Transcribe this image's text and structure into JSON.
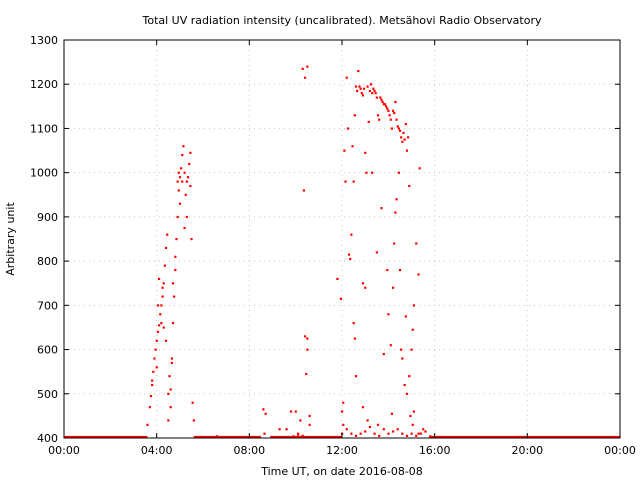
{
  "chart_data": {
    "type": "scatter",
    "title": "Total UV radiation intensity (uncalibrated). Metsähovi Radio Observatory",
    "xlabel": "Time UT, on date 2016-08-08",
    "ylabel": "Arbitrary unit",
    "xlim": [
      0,
      24
    ],
    "ylim": [
      400,
      1300
    ],
    "x_ticks": [
      {
        "value": 0,
        "label": "00:00"
      },
      {
        "value": 4,
        "label": "04:00"
      },
      {
        "value": 8,
        "label": "08:00"
      },
      {
        "value": 12,
        "label": "12:00"
      },
      {
        "value": 16,
        "label": "16:00"
      },
      {
        "value": 20,
        "label": "20:00"
      },
      {
        "value": 24,
        "label": "00:00"
      }
    ],
    "y_ticks": [
      {
        "value": 400,
        "label": "400"
      },
      {
        "value": 500,
        "label": "500"
      },
      {
        "value": 600,
        "label": "600"
      },
      {
        "value": 700,
        "label": "700"
      },
      {
        "value": 800,
        "label": "800"
      },
      {
        "value": 900,
        "label": "900"
      },
      {
        "value": 1000,
        "label": "1000"
      },
      {
        "value": 1100,
        "label": "1100"
      },
      {
        "value": 1200,
        "label": "1200"
      },
      {
        "value": 1300,
        "label": "1300"
      }
    ],
    "grid": true,
    "series": [
      {
        "color": "#ff0000",
        "points": [
          [
            3.6,
            430
          ],
          [
            3.7,
            470
          ],
          [
            3.75,
            495
          ],
          [
            3.8,
            530
          ],
          [
            3.85,
            550
          ],
          [
            3.9,
            580
          ],
          [
            3.95,
            600
          ],
          [
            4.0,
            620
          ],
          [
            4.05,
            640
          ],
          [
            4.1,
            655
          ],
          [
            4.15,
            680
          ],
          [
            4.2,
            700
          ],
          [
            4.25,
            720
          ],
          [
            4.3,
            750
          ],
          [
            4.35,
            790
          ],
          [
            4.4,
            830
          ],
          [
            4.45,
            860
          ],
          [
            4.5,
            500
          ],
          [
            4.55,
            540
          ],
          [
            4.6,
            470
          ],
          [
            4.65,
            580
          ],
          [
            4.7,
            660
          ],
          [
            4.75,
            720
          ],
          [
            4.8,
            780
          ],
          [
            4.85,
            850
          ],
          [
            4.9,
            900
          ],
          [
            4.95,
            960
          ],
          [
            5.0,
            990
          ],
          [
            5.05,
            1010
          ],
          [
            5.1,
            1040
          ],
          [
            5.15,
            1060
          ],
          [
            5.2,
            1000
          ],
          [
            5.25,
            950
          ],
          [
            5.3,
            980
          ],
          [
            5.35,
            990
          ],
          [
            5.4,
            1020
          ],
          [
            5.45,
            1045
          ],
          [
            5.5,
            850
          ],
          [
            5.55,
            480
          ],
          [
            5.6,
            440
          ],
          [
            3.8,
            520
          ],
          [
            4.1,
            760
          ],
          [
            4.3,
            650
          ],
          [
            4.5,
            440
          ],
          [
            4.7,
            750
          ],
          [
            4.9,
            980
          ],
          [
            5.1,
            980
          ],
          [
            5.3,
            900
          ],
          [
            5.45,
            970
          ],
          [
            4.2,
            660
          ],
          [
            4.0,
            560
          ],
          [
            4.4,
            620
          ],
          [
            4.6,
            510
          ],
          [
            4.8,
            810
          ],
          [
            5.0,
            930
          ],
          [
            5.2,
            875
          ],
          [
            4.05,
            700
          ],
          [
            4.25,
            740
          ],
          [
            4.65,
            570
          ],
          [
            4.95,
            1000
          ],
          [
            6.6,
            404
          ],
          [
            8.6,
            465
          ],
          [
            8.7,
            455
          ],
          [
            8.65,
            410
          ],
          [
            9.3,
            420
          ],
          [
            9.6,
            420
          ],
          [
            9.8,
            460
          ],
          [
            10.0,
            460
          ],
          [
            10.1,
            410
          ],
          [
            10.2,
            440
          ],
          [
            10.3,
            1235
          ],
          [
            10.35,
            960
          ],
          [
            10.4,
            1215
          ],
          [
            10.5,
            1240
          ],
          [
            10.4,
            630
          ],
          [
            10.5,
            625
          ],
          [
            10.45,
            545
          ],
          [
            10.5,
            600
          ],
          [
            10.6,
            430
          ],
          [
            10.6,
            450
          ],
          [
            10.1,
            408
          ],
          [
            9.9,
            404
          ],
          [
            10.3,
            405
          ],
          [
            11.8,
            760
          ],
          [
            11.95,
            715
          ],
          [
            12.0,
            460
          ],
          [
            12.05,
            480
          ],
          [
            12.1,
            1050
          ],
          [
            12.15,
            980
          ],
          [
            12.2,
            1215
          ],
          [
            12.25,
            1100
          ],
          [
            12.3,
            815
          ],
          [
            12.35,
            805
          ],
          [
            12.45,
            1060
          ],
          [
            12.5,
            980
          ],
          [
            12.55,
            1130
          ],
          [
            12.6,
            1195
          ],
          [
            12.65,
            1185
          ],
          [
            12.7,
            1230
          ],
          [
            12.75,
            1195
          ],
          [
            12.8,
            1190
          ],
          [
            12.85,
            1180
          ],
          [
            12.9,
            1175
          ],
          [
            12.95,
            1190
          ],
          [
            13.0,
            1045
          ],
          [
            13.05,
            1000
          ],
          [
            13.1,
            1195
          ],
          [
            13.15,
            1115
          ],
          [
            13.2,
            1185
          ],
          [
            13.25,
            1200
          ],
          [
            13.3,
            1180
          ],
          [
            13.35,
            1190
          ],
          [
            13.4,
            1185
          ],
          [
            13.45,
            1180
          ],
          [
            13.5,
            1170
          ],
          [
            13.55,
            1130
          ],
          [
            13.6,
            1120
          ],
          [
            13.65,
            1170
          ],
          [
            13.7,
            1165
          ],
          [
            13.75,
            1160
          ],
          [
            13.8,
            1155
          ],
          [
            13.85,
            1155
          ],
          [
            13.9,
            1150
          ],
          [
            13.95,
            1145
          ],
          [
            14.0,
            1140
          ],
          [
            14.05,
            1130
          ],
          [
            14.1,
            1120
          ],
          [
            14.15,
            1100
          ],
          [
            14.2,
            1140
          ],
          [
            14.25,
            1135
          ],
          [
            14.3,
            1160
          ],
          [
            14.35,
            1120
          ],
          [
            14.4,
            1105
          ],
          [
            14.45,
            1100
          ],
          [
            14.5,
            1095
          ],
          [
            14.55,
            1080
          ],
          [
            14.6,
            1070
          ],
          [
            14.65,
            1090
          ],
          [
            14.7,
            1075
          ],
          [
            14.75,
            1110
          ],
          [
            14.8,
            1050
          ],
          [
            14.85,
            1080
          ],
          [
            14.9,
            970
          ],
          [
            15.0,
            600
          ],
          [
            15.05,
            645
          ],
          [
            15.1,
            700
          ],
          [
            15.2,
            840
          ],
          [
            15.3,
            770
          ],
          [
            15.35,
            1010
          ],
          [
            12.4,
            860
          ],
          [
            12.5,
            660
          ],
          [
            12.55,
            625
          ],
          [
            12.6,
            540
          ],
          [
            12.9,
            750
          ],
          [
            13.0,
            740
          ],
          [
            13.3,
            1000
          ],
          [
            13.5,
            820
          ],
          [
            13.7,
            920
          ],
          [
            13.8,
            590
          ],
          [
            13.95,
            780
          ],
          [
            14.0,
            680
          ],
          [
            14.1,
            610
          ],
          [
            14.2,
            740
          ],
          [
            14.25,
            840
          ],
          [
            14.3,
            910
          ],
          [
            14.35,
            940
          ],
          [
            14.45,
            1000
          ],
          [
            14.5,
            780
          ],
          [
            14.55,
            600
          ],
          [
            14.6,
            580
          ],
          [
            14.7,
            520
          ],
          [
            14.75,
            675
          ],
          [
            14.8,
            500
          ],
          [
            14.9,
            540
          ],
          [
            14.95,
            450
          ],
          [
            15.05,
            430
          ],
          [
            15.1,
            460
          ],
          [
            15.3,
            410
          ],
          [
            15.5,
            420
          ],
          [
            12.0,
            410
          ],
          [
            12.2,
            420
          ],
          [
            12.4,
            410
          ],
          [
            12.6,
            405
          ],
          [
            12.8,
            410
          ],
          [
            13.0,
            415
          ],
          [
            13.2,
            425
          ],
          [
            13.4,
            410
          ],
          [
            13.6,
            405
          ],
          [
            13.8,
            420
          ],
          [
            14.0,
            410
          ],
          [
            14.2,
            415
          ],
          [
            14.4,
            420
          ],
          [
            14.6,
            410
          ],
          [
            14.8,
            405
          ],
          [
            15.0,
            410
          ],
          [
            15.2,
            405
          ],
          [
            15.4,
            410
          ],
          [
            15.6,
            415
          ],
          [
            15.8,
            404
          ],
          [
            12.05,
            430
          ],
          [
            12.9,
            470
          ],
          [
            13.1,
            440
          ],
          [
            14.15,
            455
          ],
          [
            13.55,
            430
          ]
        ]
      }
    ],
    "baseline": {
      "color": "#ff0000",
      "y": 402,
      "x_ranges": [
        [
          0,
          3.6
        ],
        [
          5.6,
          8.5
        ],
        [
          8.9,
          12.0
        ],
        [
          15.8,
          24.0
        ]
      ]
    }
  }
}
